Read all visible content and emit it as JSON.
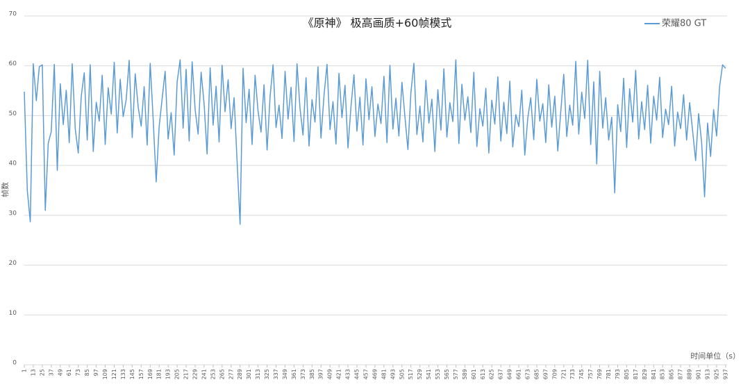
{
  "chart_data": {
    "type": "line",
    "title": "《原神》 极高画质+60帧模式",
    "y_label": "帧数",
    "x_label": "时间单位（s）",
    "x": [
      1,
      5,
      9,
      13,
      17,
      21,
      25,
      29,
      33,
      37,
      41,
      45,
      49,
      53,
      57,
      61,
      65,
      69,
      73,
      77,
      81,
      85,
      89,
      93,
      97,
      101,
      105,
      109,
      113,
      117,
      121,
      125,
      129,
      133,
      137,
      141,
      145,
      149,
      153,
      157,
      161,
      165,
      169,
      173,
      177,
      181,
      185,
      189,
      193,
      197,
      201,
      205,
      209,
      213,
      217,
      221,
      225,
      229,
      233,
      237,
      241,
      245,
      249,
      253,
      257,
      261,
      265,
      269,
      273,
      277,
      281,
      285,
      289,
      293,
      297,
      301,
      305,
      309,
      313,
      317,
      321,
      325,
      329,
      333,
      337,
      341,
      345,
      349,
      353,
      357,
      361,
      365,
      369,
      373,
      377,
      381,
      385,
      389,
      393,
      397,
      401,
      405,
      409,
      413,
      417,
      421,
      425,
      429,
      433,
      437,
      441,
      445,
      449,
      453,
      457,
      461,
      465,
      469,
      473,
      477,
      481,
      485,
      489,
      493,
      497,
      501,
      505,
      509,
      513,
      517,
      521,
      525,
      529,
      533,
      537,
      541,
      545,
      549,
      553,
      557,
      561,
      565,
      569,
      573,
      577,
      581,
      585,
      589,
      593,
      597,
      601,
      605,
      609,
      613,
      617,
      621,
      625,
      629,
      633,
      637,
      641,
      645,
      649,
      653,
      657,
      661,
      665,
      669,
      673,
      677,
      681,
      685,
      689,
      693,
      697,
      701,
      705,
      709,
      713,
      717,
      721,
      725,
      729,
      733,
      737,
      741,
      745,
      749,
      753,
      757,
      761,
      765,
      769,
      773,
      777,
      781,
      785,
      789,
      793,
      797,
      801,
      805,
      809,
      813,
      817,
      821,
      825,
      829,
      833,
      837,
      841,
      845,
      849,
      853,
      857,
      861,
      865,
      869,
      873,
      877,
      881,
      885,
      889,
      893,
      897,
      901,
      905,
      909,
      913,
      917,
      921,
      925,
      929,
      933,
      937
    ],
    "series": [
      {
        "name": "荣耀80 GT",
        "color": "#5b9bd5",
        "values": [
          54.8,
          35,
          28.7,
          60.4,
          53,
          59.8,
          60.2,
          31,
          44.5,
          46.8,
          60.3,
          39,
          56.4,
          48.2,
          55.1,
          44.6,
          60.4,
          47.3,
          42.5,
          53.9,
          58.6,
          45.1,
          60.2,
          42.8,
          52.7,
          48.9,
          58.1,
          44.2,
          55.6,
          50.3,
          60.7,
          46.5,
          57.3,
          49.8,
          53.2,
          61.1,
          45.6,
          58.4,
          51.7,
          47.9,
          55.8,
          44.1,
          60.5,
          49.2,
          36.7,
          47.8,
          53.4,
          58.9,
          45.3,
          50.6,
          42.1,
          56.8,
          61.2,
          47.5,
          59.3,
          44.9,
          60.8,
          51.2,
          46.3,
          58.7,
          52.4,
          42.3,
          59.6,
          48.1,
          55.9,
          44.7,
          60.1,
          50.8,
          57.2,
          47.4,
          53.6,
          40.9,
          28.2,
          59.5,
          48.6,
          55.3,
          44.2,
          58.1,
          50.9,
          46.7,
          56.2,
          43.1,
          53.8,
          60.2,
          47.6,
          52.1,
          45.4,
          58.9,
          49.3,
          55.7,
          44.8,
          60.4,
          51.5,
          46.1,
          57.6,
          43.9,
          53.2,
          48.7,
          59.8,
          45.5,
          54.1,
          60.3,
          47.2,
          52.8,
          44.3,
          58.5,
          49.6,
          56.1,
          43.5,
          51.8,
          58.2,
          46.9,
          53.7,
          44.1,
          57.4,
          49.2,
          55.8,
          45.8,
          52.3,
          48.4,
          57.9,
          44.6,
          60.1,
          47.3,
          53.5,
          45.9,
          56.7,
          49.8,
          43.2,
          54.6,
          60.5,
          46.2,
          51.9,
          44.7,
          57.1,
          48.5,
          53.3,
          42.8,
          55.2,
          47.1,
          59.4,
          45.7,
          52.6,
          48.8,
          61.2,
          44.4,
          56.3,
          49.1,
          53.8,
          46.6,
          58.7,
          43.8,
          51.4,
          47.9,
          55.5,
          42.5,
          53.1,
          48.3,
          57.8,
          44.9,
          52.7,
          46.4,
          56.9,
          43.7,
          50.2,
          47.8,
          55.1,
          42.1,
          49.5,
          53.6,
          45.2,
          57.3,
          48.9,
          52.4,
          44.6,
          56.2,
          47.7,
          53.9,
          42.9,
          50.8,
          58.3,
          45.8,
          52.1,
          48.1,
          60.9,
          46.3,
          54.7,
          49.4,
          61.1,
          44.2,
          56.8,
          40.3,
          58.9,
          47.5,
          53.6,
          45.1,
          49.7,
          34.5,
          52.2,
          46.8,
          57.5,
          43.6,
          55.4,
          48.7,
          59.1,
          45.3,
          52.8,
          47.2,
          56.1,
          44.5,
          53.9,
          49.1,
          57.7,
          45.6,
          51.3,
          48.2,
          55.9,
          43.9,
          50.7,
          47.4,
          54.2,
          45.1,
          52.6,
          46.9,
          41,
          50.4,
          44.7,
          33.7,
          48.5,
          41.8,
          51.2,
          45.9,
          55.8,
          60.2,
          59.5
        ]
      }
    ],
    "xlim": [
      1,
      939
    ],
    "ylim": [
      0,
      70
    ],
    "yticks": [
      0,
      10,
      20,
      30,
      40,
      50,
      60,
      70
    ],
    "xticks": [
      1,
      13,
      25,
      37,
      49,
      61,
      73,
      85,
      97,
      109,
      121,
      133,
      145,
      157,
      169,
      181,
      193,
      205,
      217,
      229,
      241,
      253,
      265,
      277,
      289,
      301,
      313,
      325,
      337,
      349,
      361,
      373,
      385,
      397,
      409,
      421,
      433,
      445,
      457,
      469,
      481,
      493,
      505,
      517,
      529,
      541,
      553,
      565,
      577,
      589,
      601,
      613,
      625,
      637,
      649,
      661,
      673,
      685,
      697,
      709,
      721,
      733,
      745,
      757,
      769,
      781,
      793,
      805,
      817,
      829,
      841,
      853,
      865,
      877,
      889,
      901,
      913,
      925,
      937
    ],
    "grid": true,
    "legend": "top-right"
  }
}
